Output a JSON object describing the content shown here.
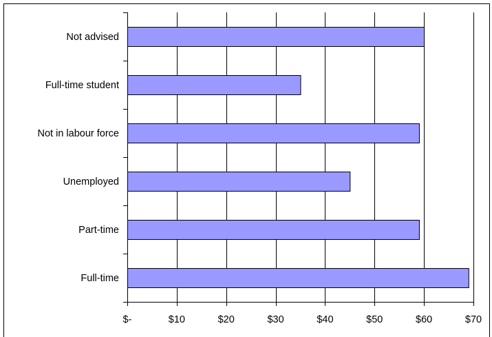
{
  "chart_data": {
    "type": "bar",
    "orientation": "horizontal",
    "title": "",
    "xlabel": "",
    "ylabel": "",
    "categories": [
      "Full-time",
      "Part-time",
      "Unemployed",
      "Not in labour force",
      "Full-time student",
      "Not advised"
    ],
    "values": [
      69,
      59,
      45,
      59,
      35,
      60
    ],
    "xlim": [
      0,
      70
    ],
    "x_ticks": [
      0,
      10,
      20,
      30,
      40,
      50,
      60,
      70
    ],
    "x_tick_labels": [
      "$-",
      "$10",
      "$20",
      "$30",
      "$40",
      "$50",
      "$60",
      "$70"
    ],
    "grid": "vertical",
    "legend": "none",
    "colors": {
      "bar_fill": "#9999ff",
      "bar_stroke": "#000000",
      "grid": "#000000",
      "background": "#ffffff"
    }
  }
}
